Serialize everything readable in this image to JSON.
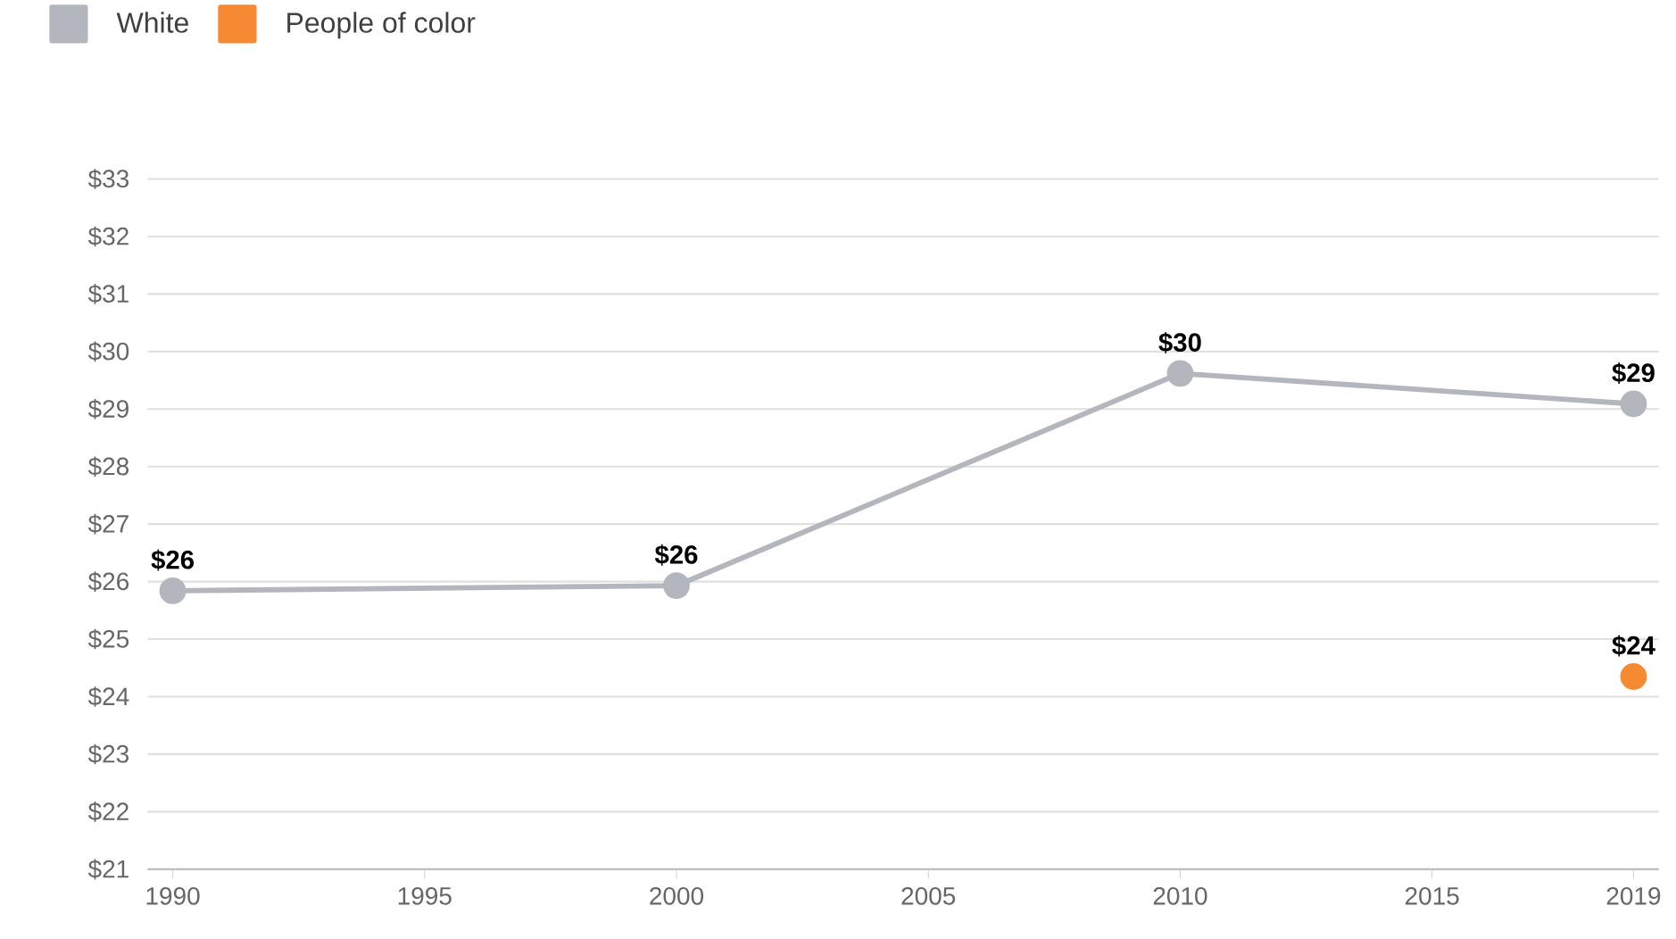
{
  "chart_data": {
    "type": "line",
    "series": [
      {
        "name": "White",
        "color": "#b3b7bd",
        "x": [
          1990,
          2000,
          2010,
          2019
        ],
        "values": [
          25.84,
          25.93,
          29.62,
          29.09
        ],
        "value_labels": [
          "$26",
          "$26",
          "$30",
          "$29"
        ]
      },
      {
        "name": "People of color",
        "color": "#f58a32",
        "x": [
          2019
        ],
        "values": [
          24.35
        ],
        "value_labels": [
          "$24"
        ]
      }
    ],
    "xlim": [
      1989.5,
      2019.5
    ],
    "xticks": [
      1990,
      1995,
      2000,
      2005,
      2010,
      2015,
      2019
    ],
    "ylim": [
      21,
      33
    ],
    "yticks": [
      {
        "value": 21,
        "label": "$21"
      },
      {
        "value": 22,
        "label": "$22"
      },
      {
        "value": 23,
        "label": "$23"
      },
      {
        "value": 24,
        "label": "$24"
      },
      {
        "value": 25,
        "label": "$25"
      },
      {
        "value": 26,
        "label": "$26"
      },
      {
        "value": 27,
        "label": "$27"
      },
      {
        "value": 28,
        "label": "$28"
      },
      {
        "value": 29,
        "label": "$29"
      },
      {
        "value": 30,
        "label": "$30"
      },
      {
        "value": 31,
        "label": "$31"
      },
      {
        "value": 32,
        "label": "$32"
      },
      {
        "value": 33,
        "label": "$33"
      }
    ],
    "grid": "y",
    "legend": "top left",
    "marker": "circle",
    "line_style": "solid"
  }
}
